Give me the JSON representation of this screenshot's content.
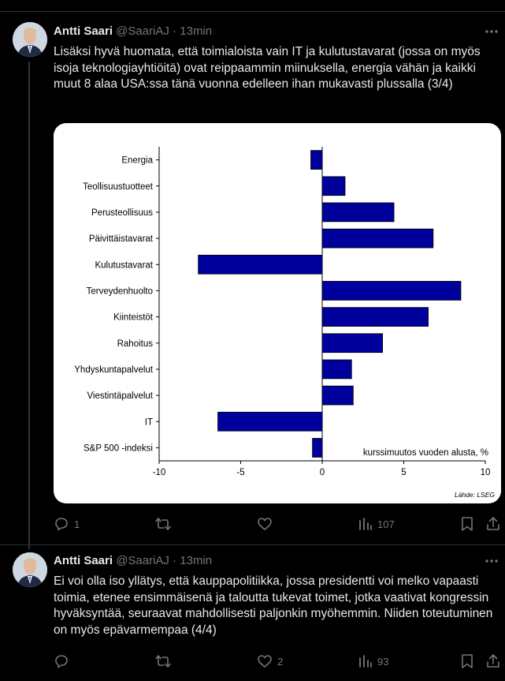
{
  "tweets": [
    {
      "author": "Antti Saari",
      "handle": "@SaariAJ",
      "separator": "·",
      "time": "13min",
      "text": "Lisäksi hyvä huomata, että toimialoista vain IT ja kulutustavarat (jossa on myös isoja teknologiayhtiöitä) ovat reippaammin miinuksella, energia vähän ja kaikki muut 8 alaa USA:ssa tänä vuonna edelleen ihan mukavasti plussalla (3/4)",
      "replies": "1",
      "reposts": "",
      "likes": "",
      "views": "107"
    },
    {
      "author": "Antti Saari",
      "handle": "@SaariAJ",
      "separator": "·",
      "time": "13min",
      "text": "Ei voi olla iso yllätys, että kauppapolitiikka, jossa presidentti voi melko vapaasti toimia, etenee ensimmäisenä ja taloutta tukevat toimet, jotka vaativat kongressin hyväksyntää, seuraavat mahdollisesti paljonkin myöhemmin. Niiden toteutuminen on myös epävarmempaa (4/4)",
      "replies": "",
      "reposts": "",
      "likes": "2",
      "views": "93"
    }
  ],
  "icons": {
    "more": "more-dots-icon",
    "reply": "reply-icon",
    "repost": "repost-icon",
    "like": "heart-icon",
    "views": "views-icon",
    "bookmark": "bookmark-icon",
    "share": "share-icon"
  },
  "colors": {
    "bar": "#00009c",
    "muted": "#71767b",
    "text": "#e7e9ea"
  },
  "chart_data": {
    "type": "bar",
    "orientation": "horizontal",
    "categories": [
      "Energia",
      "Teollisuustuotteet",
      "Perusteollisuus",
      "Päivittäistavarat",
      "Kulutustavarat",
      "Terveydenhuolto",
      "Kiinteistöt",
      "Rahoitus",
      "Yhdyskuntapalvelut",
      "Viestintäpalvelut",
      "IT",
      "S&P 500 -indeksi"
    ],
    "values": [
      -0.7,
      1.4,
      4.4,
      6.8,
      -7.6,
      8.5,
      6.5,
      3.7,
      1.8,
      1.9,
      -6.4,
      -0.6
    ],
    "xlim": [
      -10,
      10
    ],
    "xticks": [
      "-10",
      "-5",
      "0",
      "5",
      "10"
    ],
    "annotation": "kurssimuutos vuoden alusta, %",
    "source": "Lähde: LSEG",
    "grid": false
  }
}
